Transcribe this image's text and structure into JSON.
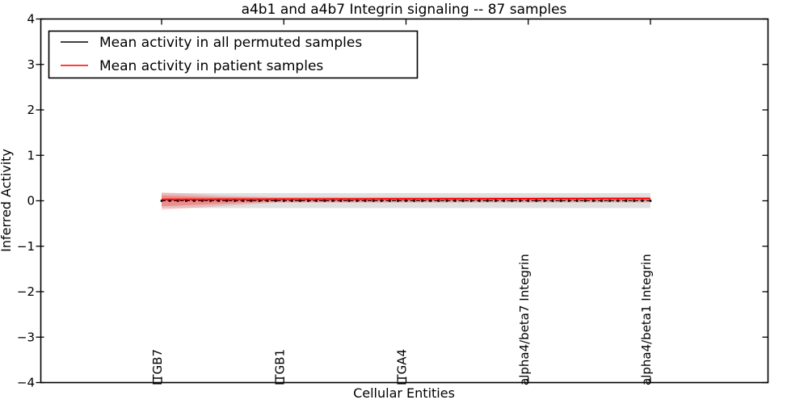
{
  "figure": {
    "background": "#ffffff",
    "accent_red": "#ff0000",
    "accent_black": "#000000"
  },
  "chart_data": {
    "type": "line",
    "title": "a4b1 and a4b7 Integrin signaling -- 87 samples",
    "xlabel": "Cellular Entities",
    "ylabel": "Inferred Activity",
    "ylim": [
      -4,
      4
    ],
    "grid": false,
    "legend_position": "upper-left",
    "ytick_values": [
      4,
      3,
      2,
      1,
      0,
      -1,
      -2,
      -3,
      -4
    ],
    "ytick_labels": [
      "4",
      "3",
      "2",
      "1",
      "0",
      "−1",
      "−2",
      "−3",
      "−4"
    ],
    "n_points": 61,
    "xtick_indices": [
      0,
      15,
      30,
      45,
      60
    ],
    "xtick_labels": [
      "ITGB7",
      "ITGB1",
      "ITGA4",
      "alpha4/beta7 Integrin",
      "alpha4/beta1 Integrin"
    ],
    "series": [
      {
        "name": "Mean activity in all permuted samples",
        "color": "#000000",
        "line_style": "dashed",
        "marker": "square",
        "value_breakpoints": [
          [
            0,
            0.0
          ],
          [
            60,
            0.0
          ]
        ]
      },
      {
        "name": "Mean activity in patient samples",
        "color": "#ff0000",
        "line_style": "solid",
        "marker": "none",
        "value_breakpoints": [
          [
            0,
            0.03
          ],
          [
            30,
            0.04
          ],
          [
            60,
            0.05
          ]
        ]
      }
    ],
    "bands": [
      {
        "name": "permuted-samples-spread",
        "color": "#000000",
        "opacity": 0.12,
        "upper": [
          [
            0,
            0.17
          ],
          [
            60,
            0.17
          ]
        ],
        "lower": [
          [
            0,
            -0.16
          ],
          [
            60,
            -0.16
          ]
        ]
      },
      {
        "name": "patient-samples-spread-outer",
        "color": "#ff0000",
        "opacity": 0.15,
        "upper": [
          [
            0,
            0.19
          ],
          [
            7,
            0.12
          ],
          [
            14,
            0.085
          ],
          [
            60,
            0.085
          ]
        ],
        "lower": [
          [
            0,
            -0.2
          ],
          [
            7,
            -0.12
          ],
          [
            14,
            -0.045
          ],
          [
            60,
            -0.04
          ]
        ]
      },
      {
        "name": "patient-samples-spread-inner",
        "color": "#ff0000",
        "opacity": 0.25,
        "upper": [
          [
            0,
            0.12
          ],
          [
            7,
            0.08
          ],
          [
            14,
            0.065
          ],
          [
            60,
            0.065
          ]
        ],
        "lower": [
          [
            0,
            -0.12
          ],
          [
            7,
            -0.07
          ],
          [
            14,
            -0.02
          ],
          [
            60,
            -0.015
          ]
        ]
      }
    ]
  }
}
